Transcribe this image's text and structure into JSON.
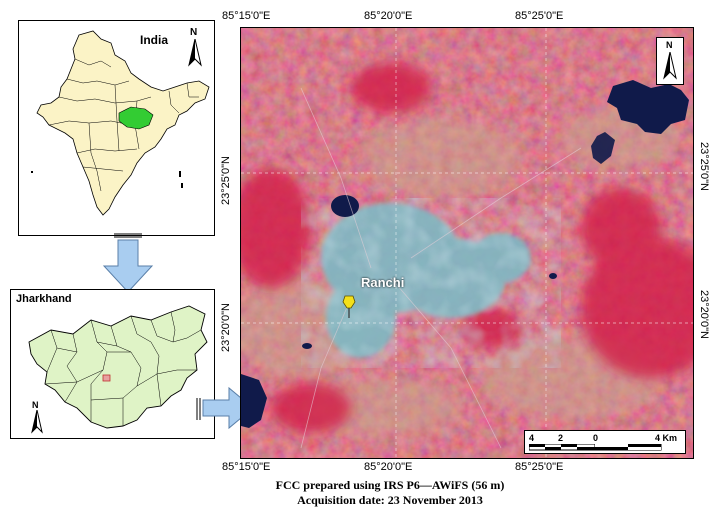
{
  "india_inset": {
    "title": "India",
    "north_label": "N"
  },
  "jharkhand_inset": {
    "title": "Jharkhand",
    "north_label": "N"
  },
  "main_map": {
    "north_label": "N",
    "city_label": "Ranchi",
    "longitude_ticks": [
      "85°15'0\"E",
      "85°20'0\"E",
      "85°25'0\"E"
    ],
    "latitude_ticks": [
      "23°25'0\"N",
      "23°20'0\"N"
    ],
    "scale_bar": {
      "labels": [
        "4",
        "2",
        "0",
        "4 Km"
      ]
    }
  },
  "caption": {
    "line1": "FCC prepared using IRS P6—AWiFS (56 m)",
    "line2": "Acquisition date: 23 November 2013"
  },
  "colors": {
    "vegetation_red": "#c8364d",
    "urban_cyan": "#7fb9c4",
    "water_dark": "#101a4a",
    "india_fill": "#fbf3c6",
    "jharkhand_highlight": "#33cc33",
    "district_fill": "#dff3c6",
    "arrow_blue": "#a9cdf0"
  }
}
